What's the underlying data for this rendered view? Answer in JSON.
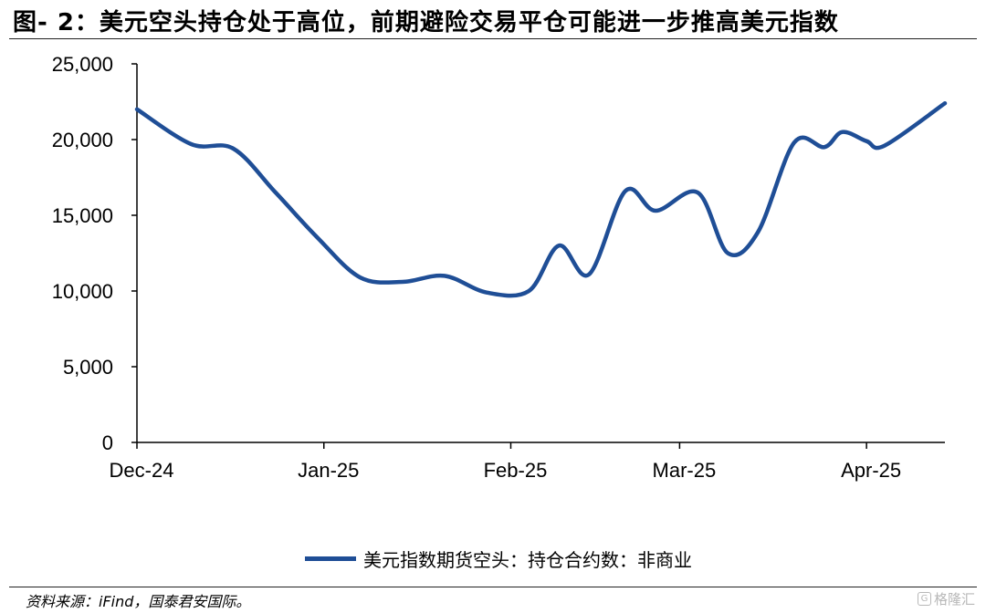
{
  "title": "图- 2：美元空头持仓处于高位，前期避险交易平仓可能进一步推高美元指数",
  "source": "资料来源：iFind，国泰君安国际。",
  "watermark": "格隆汇",
  "chart_data": {
    "type": "line",
    "title": "图- 2：美元空头持仓处于高位，前期避险交易平仓可能进一步推高美元指数",
    "xlabel": "",
    "ylabel": "",
    "ylim": [
      0,
      25000
    ],
    "yticks": [
      0,
      5000,
      10000,
      15000,
      20000,
      25000
    ],
    "ytick_labels": [
      "0",
      "5,000",
      "10,000",
      "15,000",
      "20,000",
      "25,000"
    ],
    "xticks": [
      "2024-12-01",
      "2025-01-01",
      "2025-02-01",
      "2025-03-01",
      "2025-04-01"
    ],
    "xtick_labels": [
      "Dec-24",
      "Jan-25",
      "Feb-25",
      "Mar-25",
      "Apr-25"
    ],
    "xlim": [
      "2024-12-01",
      "2025-04-14"
    ],
    "grid": false,
    "legend": "bottom-center",
    "color": "#1f4e96",
    "series": [
      {
        "name": "美元指数期货空头：持仓合约数：非商业",
        "x": [
          "2024-12-01",
          "2024-12-10",
          "2024-12-17",
          "2024-12-24",
          "2024-12-31",
          "2025-01-07",
          "2025-01-14",
          "2025-01-21",
          "2025-01-28",
          "2025-02-04",
          "2025-02-09",
          "2025-02-14",
          "2025-02-20",
          "2025-02-25",
          "2025-03-04",
          "2025-03-09",
          "2025-03-14",
          "2025-03-20",
          "2025-03-25",
          "2025-03-28",
          "2025-04-01",
          "2025-04-04",
          "2025-04-14"
        ],
        "values": [
          22000,
          19700,
          19400,
          16500,
          13500,
          10900,
          10600,
          11000,
          9900,
          10000,
          13000,
          11100,
          16600,
          15300,
          16500,
          12500,
          13900,
          19800,
          19500,
          20500,
          19900,
          19600,
          22400
        ]
      }
    ]
  }
}
